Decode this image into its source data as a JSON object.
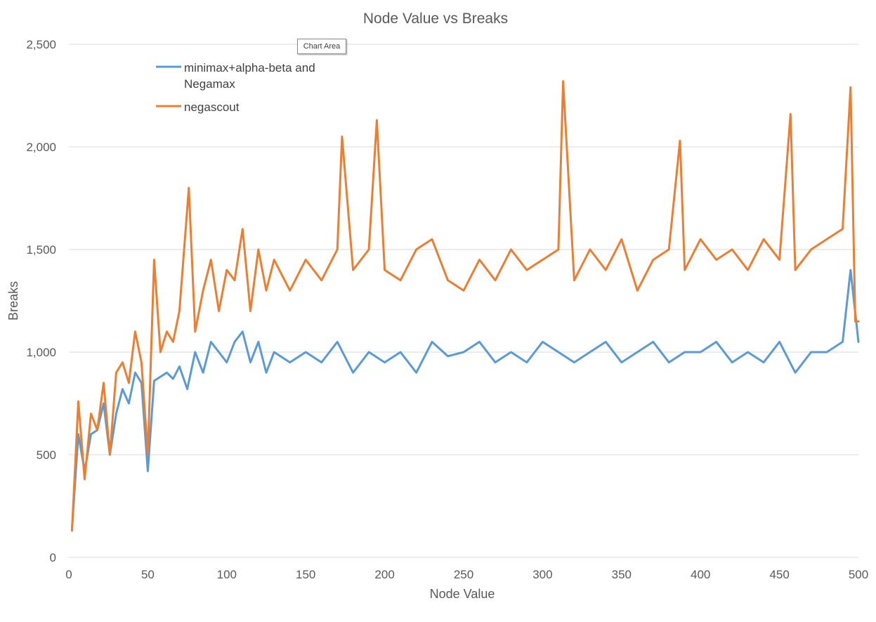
{
  "tooltip": "Chart Area",
  "chart_data": {
    "type": "line",
    "title": "Node Value vs Breaks",
    "xlabel": "Node Value",
    "ylabel": "Breaks",
    "xlim": [
      0,
      500
    ],
    "ylim": [
      0,
      2500
    ],
    "x_ticks": [
      "0",
      "50",
      "100",
      "150",
      "200",
      "250",
      "300",
      "350",
      "400",
      "450",
      "500"
    ],
    "y_ticks": [
      "0",
      "500",
      "1,000",
      "1,500",
      "2,000",
      "2,500"
    ],
    "grid": "horizontal",
    "legend_position": "top-left",
    "series": [
      {
        "name": "minimax+alpha-beta and Negamax",
        "color": "#5b9bd5",
        "x": [
          2,
          6,
          10,
          14,
          18,
          22,
          26,
          30,
          34,
          38,
          42,
          46,
          50,
          54,
          58,
          62,
          66,
          70,
          75,
          80,
          85,
          90,
          95,
          100,
          105,
          110,
          115,
          120,
          125,
          130,
          140,
          150,
          160,
          170,
          180,
          190,
          200,
          210,
          220,
          230,
          240,
          250,
          260,
          270,
          280,
          290,
          300,
          310,
          320,
          330,
          340,
          350,
          360,
          370,
          380,
          390,
          400,
          410,
          420,
          430,
          440,
          450,
          460,
          470,
          480,
          490,
          495,
          500
        ],
        "values": [
          140,
          600,
          420,
          600,
          620,
          750,
          500,
          700,
          820,
          750,
          900,
          850,
          420,
          860,
          880,
          900,
          870,
          930,
          820,
          1000,
          900,
          1050,
          1000,
          950,
          1050,
          1100,
          950,
          1050,
          900,
          1000,
          950,
          1000,
          950,
          1050,
          900,
          1000,
          950,
          1000,
          900,
          1050,
          980,
          1000,
          1050,
          950,
          1000,
          950,
          1050,
          1000,
          950,
          1000,
          1050,
          950,
          1000,
          1050,
          950,
          1000,
          1000,
          1050,
          950,
          1000,
          950,
          1050,
          900,
          1000,
          1000,
          1050,
          1400,
          1050
        ]
      },
      {
        "name": "negascout",
        "color": "#ed7d31",
        "x": [
          2,
          6,
          10,
          14,
          18,
          22,
          26,
          30,
          34,
          38,
          42,
          46,
          50,
          54,
          58,
          62,
          66,
          70,
          76,
          80,
          85,
          90,
          95,
          100,
          105,
          110,
          115,
          120,
          125,
          130,
          140,
          150,
          160,
          170,
          173,
          180,
          190,
          195,
          200,
          210,
          220,
          230,
          240,
          250,
          260,
          270,
          280,
          290,
          300,
          310,
          313,
          320,
          330,
          340,
          350,
          360,
          370,
          380,
          387,
          390,
          400,
          410,
          420,
          430,
          440,
          450,
          457,
          460,
          470,
          480,
          490,
          495,
          498,
          500
        ],
        "values": [
          130,
          760,
          380,
          700,
          620,
          850,
          500,
          900,
          950,
          850,
          1100,
          950,
          500,
          1450,
          1000,
          1100,
          1050,
          1200,
          1800,
          1100,
          1300,
          1450,
          1200,
          1400,
          1350,
          1600,
          1200,
          1500,
          1300,
          1450,
          1300,
          1450,
          1350,
          1500,
          2050,
          1400,
          1500,
          2130,
          1400,
          1350,
          1500,
          1550,
          1350,
          1300,
          1450,
          1350,
          1500,
          1400,
          1450,
          1500,
          2320,
          1350,
          1500,
          1400,
          1550,
          1300,
          1450,
          1500,
          2030,
          1400,
          1550,
          1450,
          1500,
          1400,
          1550,
          1450,
          2160,
          1400,
          1500,
          1550,
          1600,
          2290,
          1150,
          1150
        ]
      }
    ]
  }
}
